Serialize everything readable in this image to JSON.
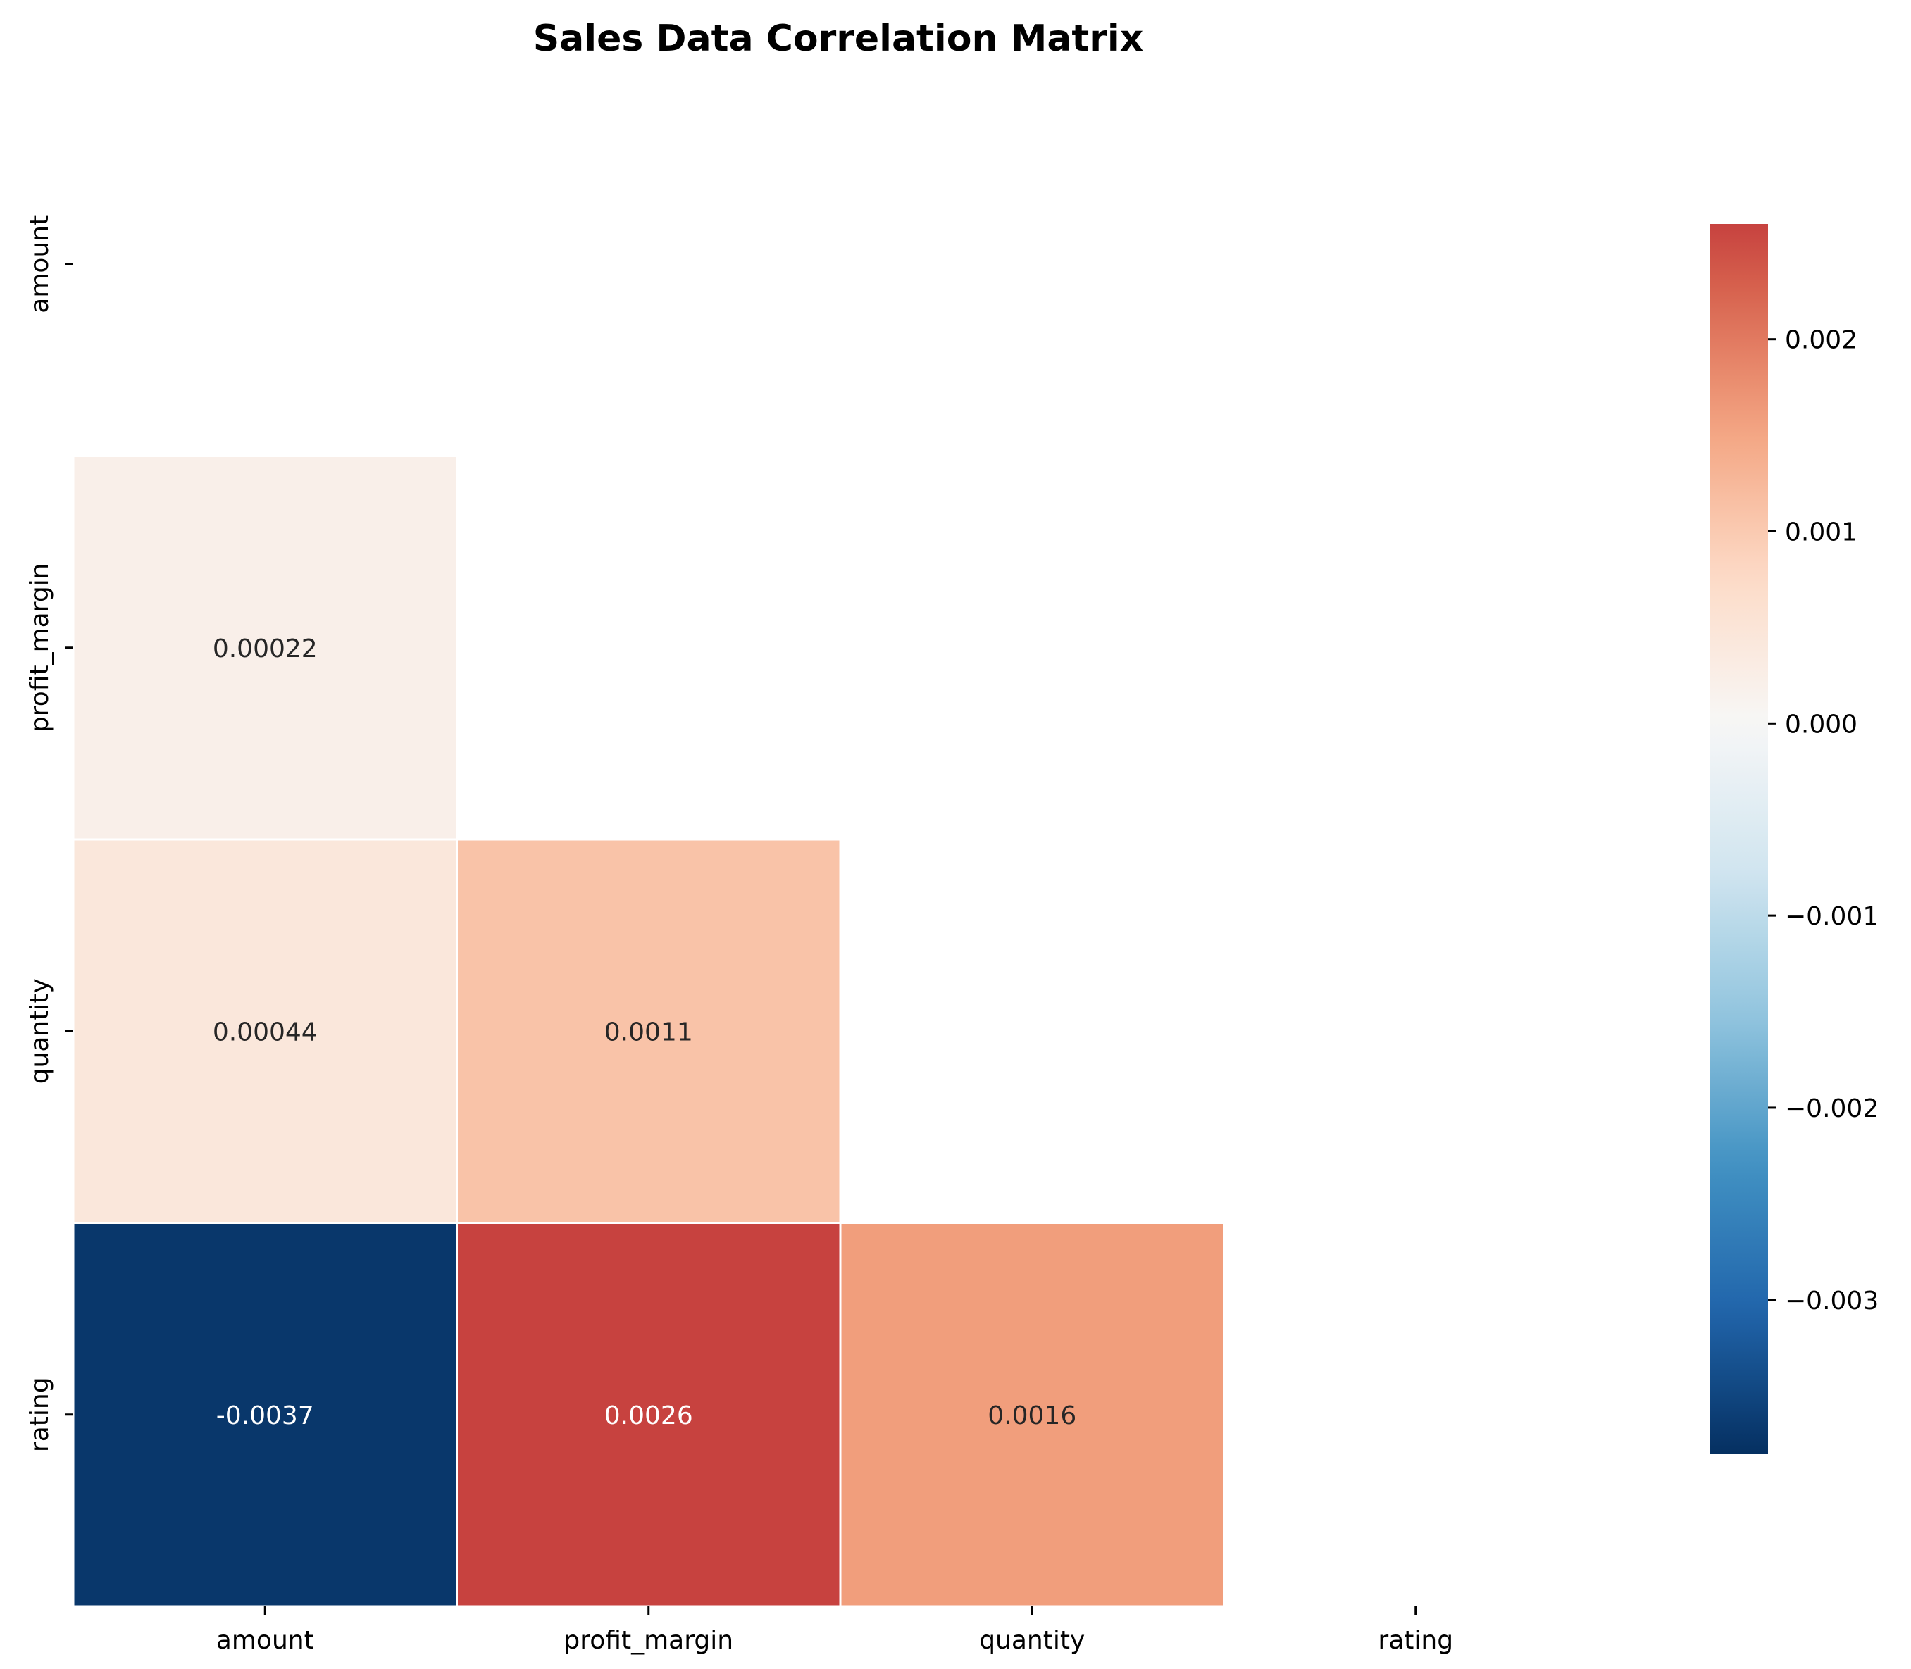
{
  "chart_data": {
    "type": "heatmap",
    "title": "Sales Data Correlation Matrix",
    "xlabel": "",
    "ylabel": "",
    "row_labels": [
      "amount",
      "profit_margin",
      "quantity",
      "rating"
    ],
    "col_labels": [
      "amount",
      "profit_margin",
      "quantity",
      "rating"
    ],
    "mask": "upper-triangle-including-diagonal",
    "cells": [
      {
        "row": 1,
        "col": 0,
        "value": 0.00022,
        "label": "0.00022"
      },
      {
        "row": 2,
        "col": 0,
        "value": 0.00044,
        "label": "0.00044"
      },
      {
        "row": 2,
        "col": 1,
        "value": 0.0011,
        "label": "0.0011"
      },
      {
        "row": 3,
        "col": 0,
        "value": -0.0037,
        "label": "-0.0037"
      },
      {
        "row": 3,
        "col": 1,
        "value": 0.0026,
        "label": "0.0026"
      },
      {
        "row": 3,
        "col": 2,
        "value": 0.0016,
        "label": "0.0016"
      }
    ],
    "colorbar": {
      "min": -0.0038,
      "max": 0.0026,
      "center": 0,
      "colormap": "RdBu_r",
      "ticks": [
        {
          "value": 0.002,
          "label": "0.002"
        },
        {
          "value": 0.001,
          "label": "0.001"
        },
        {
          "value": 0.0,
          "label": "0.000"
        },
        {
          "value": -0.001,
          "label": "−0.001"
        },
        {
          "value": -0.002,
          "label": "−0.002"
        },
        {
          "value": -0.003,
          "label": "−0.003"
        }
      ]
    },
    "colors": {
      "cell_border": "#ffffff",
      "dark_text": "#262626",
      "light_text": "#ffffff"
    }
  }
}
